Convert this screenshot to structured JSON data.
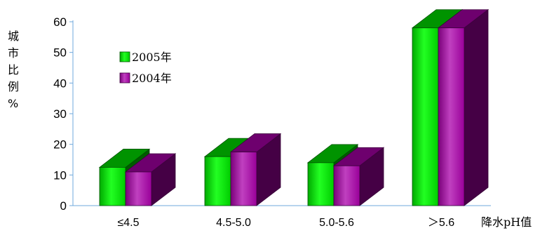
{
  "chart_data": {
    "type": "bar",
    "categories": [
      "≤4.5",
      "4.5-5.0",
      "5.0-5.6",
      "＞5.6"
    ],
    "series": [
      {
        "name": "2005年",
        "values": [
          12.5,
          16,
          14,
          58
        ],
        "color": "#00cc00"
      },
      {
        "name": "2004年",
        "values": [
          11,
          17.5,
          13,
          58
        ],
        "color": "#990099"
      }
    ],
    "ylim": [
      0,
      60
    ],
    "yticks": [
      0,
      10,
      20,
      30,
      40,
      50,
      60
    ],
    "ylabel_chars": [
      "城",
      "市",
      "比",
      "例",
      "%"
    ],
    "xlabel": "降水pH值",
    "legend_position": "top-left"
  }
}
